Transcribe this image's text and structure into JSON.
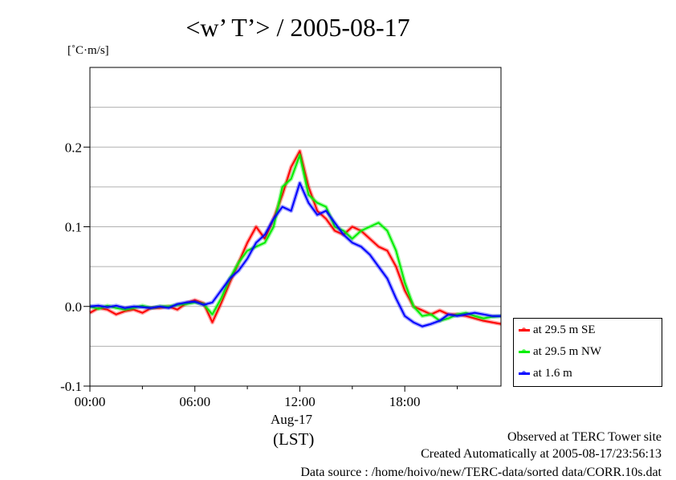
{
  "title": "<w’ T’> / 2005-08-17",
  "footer": {
    "line1": "Observed at TERC Tower site",
    "line2": "Created Automatically at 2005-08-17/23:56:13",
    "line3": "Data source : /home/hoivo/new/TERC-data/sorted  data/CORR.10s.dat"
  },
  "colors": {
    "red": "#ff0000",
    "green": "#00ee00",
    "blue": "#0000ff",
    "grid": "#b0b0b0"
  },
  "chart_data": {
    "type": "line",
    "title": "<w’ T’> / 2005-08-17",
    "ylabel": "[˚C·m/s]",
    "xlabel": "(LST)",
    "xdate": "Aug-17",
    "xlim": [
      0,
      23.5
    ],
    "ylim": [
      -0.1,
      0.3
    ],
    "x_ticks": [
      0,
      6,
      12,
      18
    ],
    "x_tick_labels": [
      "00:00",
      "06:00",
      "12:00",
      "18:00"
    ],
    "y_ticks": [
      -0.1,
      0.0,
      0.1,
      0.2
    ],
    "y_tick_labels": [
      "-0.1",
      "0.0",
      "0.1",
      "0.2"
    ],
    "grid": true,
    "legend_position": "lower-right-outside",
    "x": [
      0,
      0.5,
      1,
      1.5,
      2,
      2.5,
      3,
      3.5,
      4,
      4.5,
      5,
      5.5,
      6,
      6.5,
      7,
      7.5,
      8,
      8.5,
      9,
      9.5,
      10,
      10.5,
      11,
      11.5,
      12,
      12.5,
      13,
      13.5,
      14,
      14.5,
      15,
      15.5,
      16,
      16.5,
      17,
      17.5,
      18,
      18.5,
      19,
      19.5,
      20,
      20.5,
      21,
      21.5,
      22,
      22.5,
      23,
      23.5
    ],
    "series": [
      {
        "name": "at 29.5 m SE",
        "color": "#ff0000",
        "values": [
          -0.008,
          -0.002,
          -0.004,
          -0.01,
          -0.006,
          -0.004,
          -0.008,
          -0.002,
          -0.002,
          0.0,
          -0.004,
          0.004,
          0.008,
          0.004,
          -0.02,
          0.004,
          0.03,
          0.055,
          0.08,
          0.1,
          0.085,
          0.11,
          0.14,
          0.175,
          0.195,
          0.15,
          0.12,
          0.11,
          0.095,
          0.09,
          0.1,
          0.095,
          0.085,
          0.075,
          0.07,
          0.05,
          0.02,
          0.0,
          -0.005,
          -0.01,
          -0.005,
          -0.01,
          -0.01,
          -0.012,
          -0.015,
          -0.018,
          -0.02,
          -0.022
        ]
      },
      {
        "name": "at 29.5 m NW",
        "color": "#00ee00",
        "values": [
          0.0,
          -0.003,
          0.001,
          -0.002,
          -0.004,
          -0.002,
          0.001,
          -0.002,
          0.0,
          0.0,
          0.002,
          0.003,
          0.005,
          0.003,
          -0.01,
          0.01,
          0.035,
          0.055,
          0.07,
          0.075,
          0.08,
          0.1,
          0.15,
          0.16,
          0.19,
          0.14,
          0.13,
          0.125,
          0.1,
          0.095,
          0.085,
          0.095,
          0.1,
          0.105,
          0.095,
          0.07,
          0.03,
          0.0,
          -0.012,
          -0.01,
          -0.018,
          -0.015,
          -0.01,
          -0.008,
          -0.012,
          -0.015,
          -0.013,
          -0.012
        ]
      },
      {
        "name": "at 1.6 m",
        "color": "#0000ff",
        "values": [
          0.0,
          0.001,
          -0.001,
          0.001,
          -0.002,
          0.0,
          -0.001,
          -0.002,
          0.0,
          -0.002,
          0.003,
          0.005,
          0.006,
          0.002,
          0.005,
          0.02,
          0.035,
          0.045,
          0.06,
          0.08,
          0.09,
          0.11,
          0.125,
          0.12,
          0.155,
          0.13,
          0.115,
          0.12,
          0.105,
          0.09,
          0.08,
          0.075,
          0.065,
          0.05,
          0.035,
          0.01,
          -0.012,
          -0.02,
          -0.025,
          -0.022,
          -0.018,
          -0.01,
          -0.012,
          -0.01,
          -0.008,
          -0.01,
          -0.012,
          -0.012
        ]
      }
    ]
  }
}
